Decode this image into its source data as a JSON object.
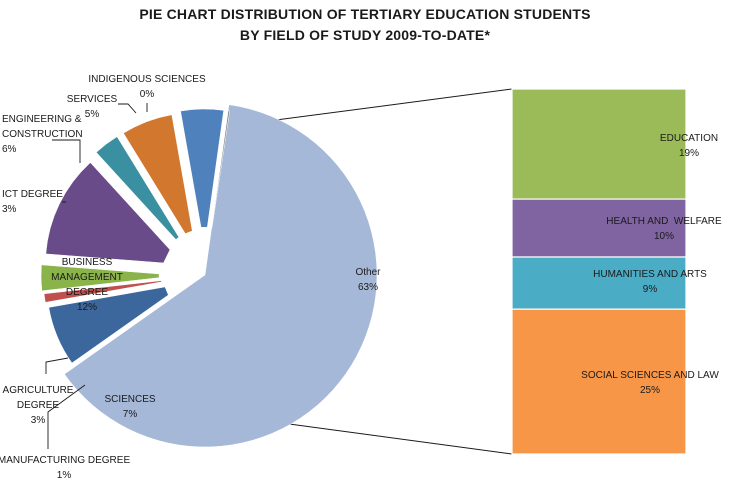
{
  "chart_data": {
    "type": "bar-of-pie",
    "title_line1": "PIE CHART DISTRIBUTION OF TERTIARY EDUCATION STUDENTS",
    "title_line2": "BY FIELD OF STUDY 2009-TO-DATE*",
    "pie": [
      {
        "name": "Other",
        "value": 63,
        "pct": "63%",
        "color": "#a6b8d8"
      },
      {
        "name": "SCIENCES",
        "value": 7,
        "pct": "7%",
        "color": "#3b679c"
      },
      {
        "name": "MANUFACTURING DEGREE",
        "value": 1,
        "pct": "1%",
        "color": "#c0504d"
      },
      {
        "name": "AGRICULTURE DEGREE",
        "value": 3,
        "pct": "3%",
        "color": "#8ab34a"
      },
      {
        "name": "BUSINESS MANAGEMENT DEGREE",
        "value": 12,
        "pct": "12%",
        "color": "#6a4b8a"
      },
      {
        "name": "ICT DEGREE",
        "value": 3,
        "pct": "3%",
        "color": "#3a8fa0"
      },
      {
        "name": "ENGINEERING & CONSTRUCTION",
        "value": 6,
        "pct": "6%",
        "color": "#d2772e"
      },
      {
        "name": "SERVICES",
        "value": 5,
        "pct": "5%",
        "color": "#4f81bd"
      },
      {
        "name": "INDIGENOUS SCIENCES",
        "value": 0,
        "pct": "0%",
        "color": "#7f7f7f"
      }
    ],
    "bar": [
      {
        "name": "EDUCATION",
        "value": 19,
        "pct": "19%",
        "color": "#9bbb59"
      },
      {
        "name": "HEALTH AND  WELFARE",
        "value": 10,
        "pct": "10%",
        "color": "#8064a2"
      },
      {
        "name": "HUMANITIES AND ARTS",
        "value": 9,
        "pct": "9%",
        "color": "#4bacc6"
      },
      {
        "name": "SOCIAL SCIENCES AND LAW",
        "value": 25,
        "pct": "25%",
        "color": "#f79646"
      }
    ]
  }
}
